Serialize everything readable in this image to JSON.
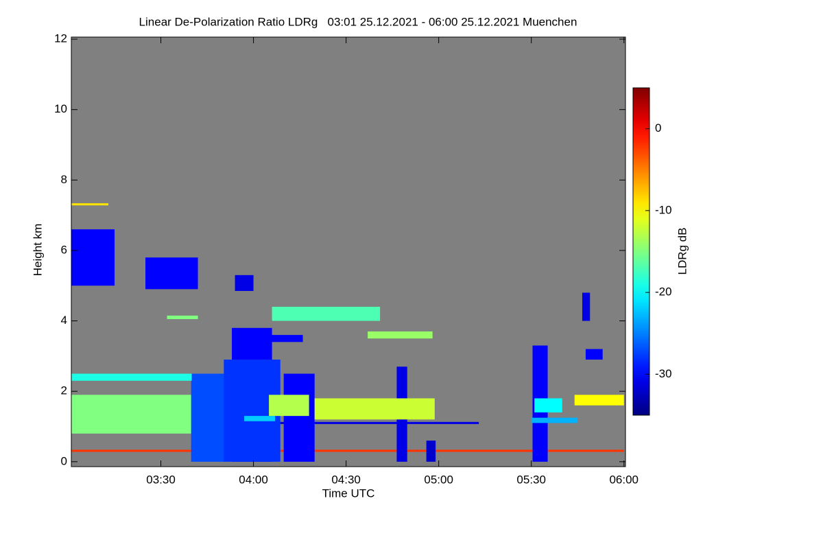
{
  "chart_data": {
    "type": "heatmap",
    "title": "Linear De-Polarization Ratio LDRg   03:01 25.12.2021 - 06:00 25.12.2021 Muenchen",
    "x_label": "Time UTC",
    "y_label": "Height km",
    "colorbar_label": "LDRg dB",
    "background": "#808080",
    "colormap": "jet",
    "xlim": [
      181,
      360.5
    ],
    "xticks": [
      {
        "value": 210,
        "label": "03:30"
      },
      {
        "value": 240,
        "label": "04:00"
      },
      {
        "value": 270,
        "label": "04:30"
      },
      {
        "value": 300,
        "label": "05:00"
      },
      {
        "value": 330,
        "label": "05:30"
      },
      {
        "value": 360,
        "label": "06:00"
      }
    ],
    "ylim": [
      -0.14,
      12.06
    ],
    "yticks": [
      0,
      2,
      4,
      6,
      8,
      10,
      12
    ],
    "clim": [
      -35,
      5
    ],
    "cticks": [
      0,
      -10,
      -20,
      -30
    ],
    "cells": {
      "t0": [
        181,
        181,
        181,
        181,
        205,
        234,
        219.8,
        233,
        230.4,
        249.8,
        286.4,
        296,
        330.4,
        347.6,
        346.5,
        246,
        236,
        181,
        181,
        259.8,
        344,
        259.8,
        237,
        330,
        331,
        277,
        212,
        245
      ],
      "t1": [
        360,
        250,
        220,
        195,
        222,
        240,
        231,
        246,
        248.7,
        259.8,
        289.8,
        299,
        335.3,
        353.1,
        349,
        281,
        256,
        193,
        220,
        298.7,
        360,
        313,
        247,
        345,
        340,
        298,
        222,
        258
      ],
      "h0": [
        0.28,
        1.07,
        0.8,
        5.0,
        4.9,
        4.85,
        0,
        0,
        0,
        0,
        0,
        0,
        0,
        2.9,
        4.0,
        4.0,
        3.4,
        7.28,
        2.3,
        1.2,
        1.6,
        1.07,
        1.15,
        1.1,
        1.4,
        3.5,
        4.05,
        1.3
      ],
      "h1": [
        0.34,
        1.13,
        1.9,
        6.6,
        5.8,
        5.3,
        2.5,
        3.8,
        2.9,
        2.5,
        2.7,
        0.6,
        3.3,
        3.2,
        4.8,
        4.4,
        3.6,
        7.34,
        2.5,
        1.8,
        1.9,
        1.13,
        1.3,
        1.25,
        1.8,
        3.7,
        4.15,
        1.9
      ],
      "ldr": [
        -2,
        -32,
        -15,
        -30,
        -30,
        -31,
        -27,
        -30,
        -28,
        -30,
        -31,
        -32,
        -30,
        -30,
        -31,
        -17,
        -30,
        -9,
        -19,
        -12,
        -10,
        -31,
        -22,
        -23,
        -20,
        -14,
        -15,
        -13
      ]
    }
  }
}
